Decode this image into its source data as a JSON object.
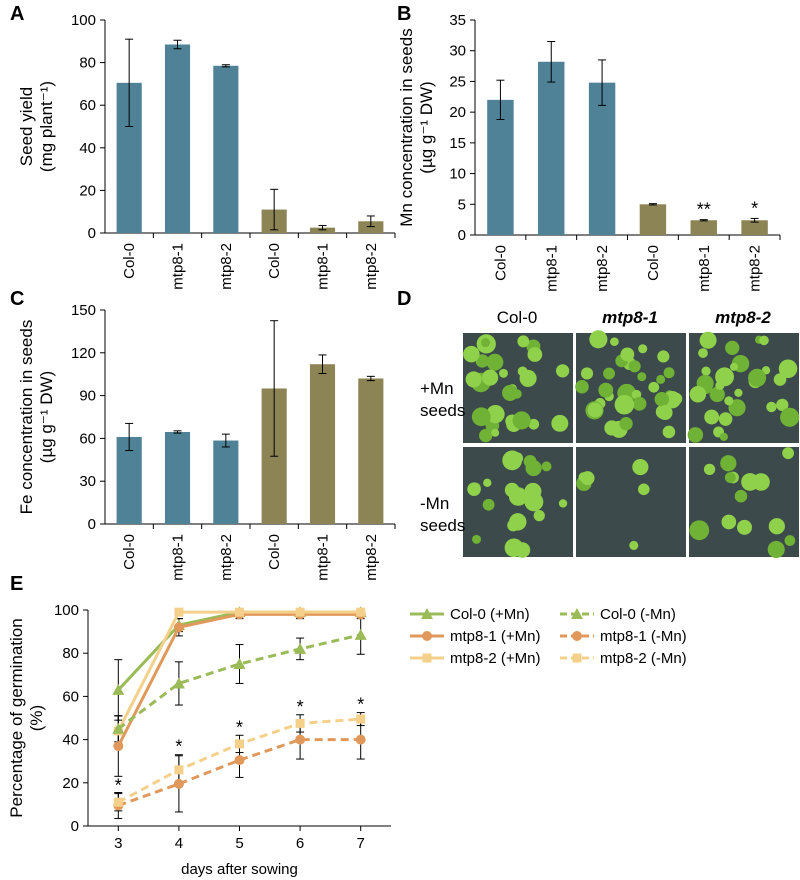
{
  "chart_data": [
    {
      "type": "bar",
      "panel": "A",
      "y_label": [
        "Seed yield",
        "(mg plant⁻¹)"
      ],
      "categories": [
        "Col-0",
        "mtp8-1",
        "mtp8-2",
        "Col-0",
        "mtp8-1",
        "mtp8-2"
      ],
      "values": [
        70.5,
        88.5,
        78.5,
        11,
        2.5,
        5.5
      ],
      "errors": [
        20.5,
        2,
        0.5,
        9.5,
        1,
        2.5
      ],
      "colors": [
        "#4f8296",
        "#4f8296",
        "#4f8296",
        "#8c8455",
        "#8c8455",
        "#8c8455"
      ],
      "ylim": [
        0,
        100
      ],
      "yticks": [
        0,
        20,
        40,
        60,
        80,
        100
      ]
    },
    {
      "type": "bar",
      "panel": "B",
      "y_label": [
        "Mn concentration in seeds",
        "(µg g⁻¹ DW)"
      ],
      "categories": [
        "Col-0",
        "mtp8-1",
        "mtp8-2",
        "Col-0",
        "mtp8-1",
        "mtp8-2"
      ],
      "values": [
        22,
        28.2,
        24.8,
        5,
        2.4,
        2.4
      ],
      "errors": [
        3.2,
        3.3,
        3.7,
        0.1,
        0.1,
        0.3
      ],
      "value_annotations": [
        null,
        null,
        null,
        null,
        "**",
        "*"
      ],
      "colors": [
        "#4f8296",
        "#4f8296",
        "#4f8296",
        "#8c8455",
        "#8c8455",
        "#8c8455"
      ],
      "ylim": [
        0,
        35
      ],
      "yticks": [
        0,
        5,
        10,
        15,
        20,
        25,
        30,
        35
      ]
    },
    {
      "type": "bar",
      "panel": "C",
      "y_label": [
        "Fe concentration in seeds",
        "(µg g⁻¹ DW)"
      ],
      "categories": [
        "Col-0",
        "mtp8-1",
        "mtp8-2",
        "Col-0",
        "mtp8-1",
        "mtp8-2"
      ],
      "values": [
        61,
        64.5,
        58.5,
        95,
        112,
        102
      ],
      "errors": [
        9.5,
        0.8,
        4.5,
        47.5,
        6.5,
        1.5
      ],
      "colors": [
        "#4f8296",
        "#4f8296",
        "#4f8296",
        "#8c8455",
        "#8c8455",
        "#8c8455"
      ],
      "ylim": [
        0,
        150
      ],
      "yticks": [
        0,
        30,
        60,
        90,
        120,
        150
      ]
    },
    {
      "type": "line",
      "panel": "E",
      "x_label": "days after sowing",
      "y_label": [
        "Percentage of germination",
        "(%)"
      ],
      "x": [
        3,
        4,
        5,
        6,
        7
      ],
      "xlim": [
        2.5,
        7.5
      ],
      "xticks": [
        3,
        4,
        5,
        6,
        7
      ],
      "ylim": [
        0,
        100
      ],
      "yticks": [
        0,
        20,
        40,
        60,
        80,
        100
      ],
      "series": [
        {
          "name": "Col-0 (+Mn)",
          "color": "#9bbb59",
          "dash": false,
          "marker": "triangle",
          "values": [
            63,
            93,
            99,
            99,
            99
          ],
          "errors": [
            14,
            3,
            1,
            1,
            1
          ]
        },
        {
          "name": "mtp8-1 (+Mn)",
          "color": "#e0995a",
          "dash": false,
          "marker": "circle",
          "values": [
            37,
            92,
            98,
            98,
            98
          ],
          "errors": [
            14,
            4,
            2,
            2,
            2
          ]
        },
        {
          "name": "mtp8-2 (+Mn)",
          "color": "#f5d08a",
          "dash": false,
          "marker": "square",
          "values": [
            44,
            99,
            99,
            99,
            99
          ],
          "errors": [
            7,
            1,
            1,
            1,
            1
          ]
        },
        {
          "name": "Col-0 (-Mn)",
          "color": "#9bbb59",
          "dash": true,
          "marker": "triangle",
          "values": [
            45,
            66,
            75,
            82,
            88.5
          ],
          "errors": [
            6,
            10,
            9,
            5,
            9
          ]
        },
        {
          "name": "mtp8-1 (-Mn)",
          "color": "#e0995a",
          "dash": true,
          "marker": "circle",
          "values": [
            9.5,
            19.5,
            30.5,
            40,
            40
          ],
          "errors": [
            6,
            13,
            8,
            9,
            9
          ]
        },
        {
          "name": "mtp8-2 (-Mn)",
          "color": "#f5d08a",
          "dash": true,
          "marker": "square",
          "values": [
            11,
            26,
            38,
            47.5,
            49.5
          ],
          "errors": [
            4,
            7,
            4,
            4,
            3
          ],
          "significance": [
            "*",
            "*",
            "*",
            "*",
            "*"
          ]
        }
      ]
    }
  ],
  "panel_d": {
    "label": "D",
    "columns": [
      "Col-0",
      "mtp8-1",
      "mtp8-2"
    ],
    "rows": [
      [
        "+Mn",
        "seeds"
      ],
      [
        "-Mn",
        "seeds"
      ]
    ]
  }
}
